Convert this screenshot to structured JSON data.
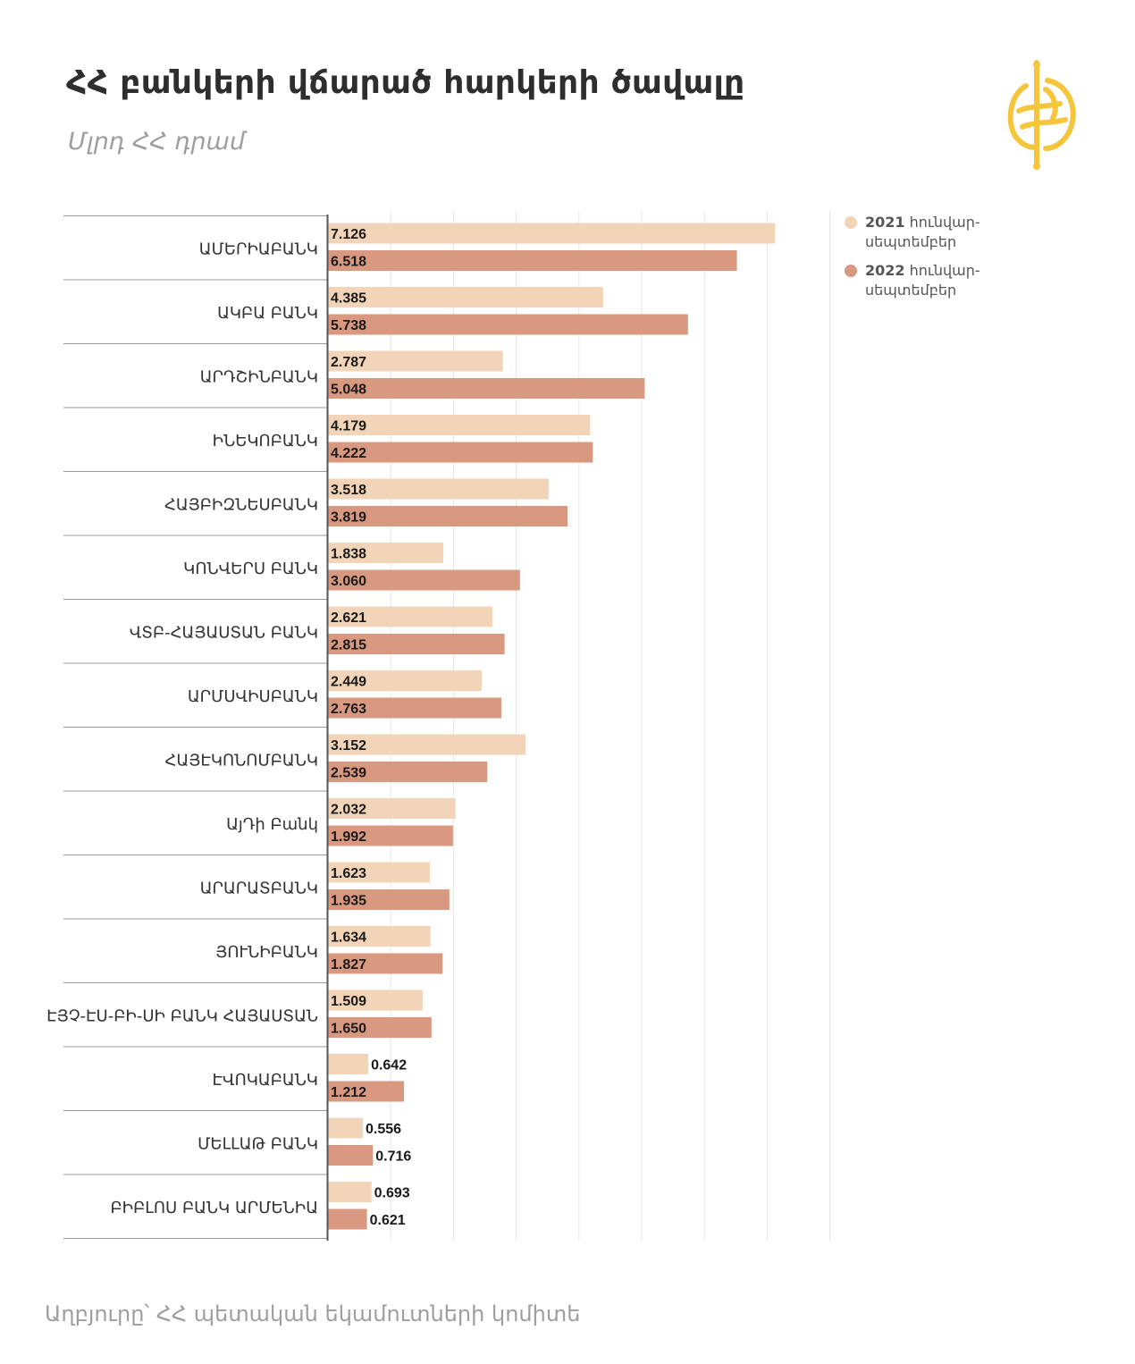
{
  "header": {
    "title": "ՀՀ բանկերի վճարած հարկերի ծավալը",
    "subtitle": "Մլրդ ՀՀ դրամ"
  },
  "footer": {
    "source": "Աղբյուրը՝ ՀՀ պետական եկամուտների կոմիտե"
  },
  "legend": {
    "items": [
      {
        "year": "2021",
        "label_line1": "հունվար-",
        "label_line2": "սեպտեմբեր"
      },
      {
        "year": "2022",
        "label_line1": "հունվար-",
        "label_line2": "սեպտեմբեր"
      }
    ]
  },
  "colors": {
    "series_2021": "#f2d5b8",
    "series_2022": "#d99880",
    "grid": "#e6e6e6",
    "separator": "#9a9a9a",
    "axis": "#555555",
    "logo": "#f5c63c"
  },
  "chart_data": {
    "type": "bar",
    "orientation": "horizontal",
    "title": "ՀՀ բանկերի վճարած հարկերի ծավալը",
    "subtitle": "Մլրդ ՀՀ դրամ",
    "categories": [
      "ԱՄԵՐԻԱԲԱՆԿ",
      "ԱԿԲԱ ԲԱՆԿ",
      "ԱՐԴՇԻՆԲԱՆԿ",
      "ԻՆԵԿՈԲԱՆԿ",
      "ՀԱՅԲԻԶՆԵՍԲԱՆԿ",
      "ԿՈՆՎԵՐՍ ԲԱՆԿ",
      "ՎՏԲ-ՀԱՅԱՍՏԱՆ ԲԱՆԿ",
      "ԱՐՄՍՎԻՍԲԱՆԿ",
      "ՀԱՅԷԿՈՆՈՄԲԱՆԿ",
      "ԱյԴի Բանկ",
      "ԱՐԱՐԱՏԲԱՆԿ",
      "ՅՈՒՆԻԲԱՆԿ",
      "ԷՅՉ-ԷՍ-ԲԻ-ՍԻ ԲԱՆԿ ՀԱՅԱՍՏԱՆ",
      "ԷՎՈԿԱԲԱՆԿ",
      "ՄԵԼԼԱԹ ԲԱՆԿ",
      "ԲԻԲԼՈՍ ԲԱՆԿ ԱՐՄԵՆԻԱ"
    ],
    "series": [
      {
        "name": "2021 հունվար-սեպտեմբեր",
        "values": [
          7.126,
          4.385,
          2.787,
          4.179,
          3.518,
          1.838,
          2.621,
          2.449,
          3.152,
          2.032,
          1.623,
          1.634,
          1.509,
          0.642,
          0.556,
          0.693
        ],
        "labels": [
          "7.126",
          "4.385",
          "2.787",
          "4.179",
          "3.518",
          "1.838",
          "2.621",
          "2.449",
          "3.152",
          "2.032",
          "1.623",
          "1.634",
          "1.509",
          "0.642",
          "0.556",
          "0.693"
        ]
      },
      {
        "name": "2022 հունվար-սեպտեմբեր",
        "values": [
          6.518,
          5.738,
          5.048,
          4.222,
          3.819,
          3.06,
          2.815,
          2.763,
          2.539,
          1.992,
          1.935,
          1.827,
          1.65,
          1.212,
          0.716,
          0.621
        ],
        "labels": [
          "6.518",
          "5.738",
          "5.048",
          "4.222",
          "3.819",
          "3.060",
          "2.815",
          "2.763",
          "2.539",
          "1.992",
          "1.935",
          "1.827",
          "1.650",
          "1.212",
          "0.716",
          "0.621"
        ]
      }
    ],
    "xlim": [
      0,
      8
    ],
    "grid": true,
    "legend_position": "top-right"
  }
}
